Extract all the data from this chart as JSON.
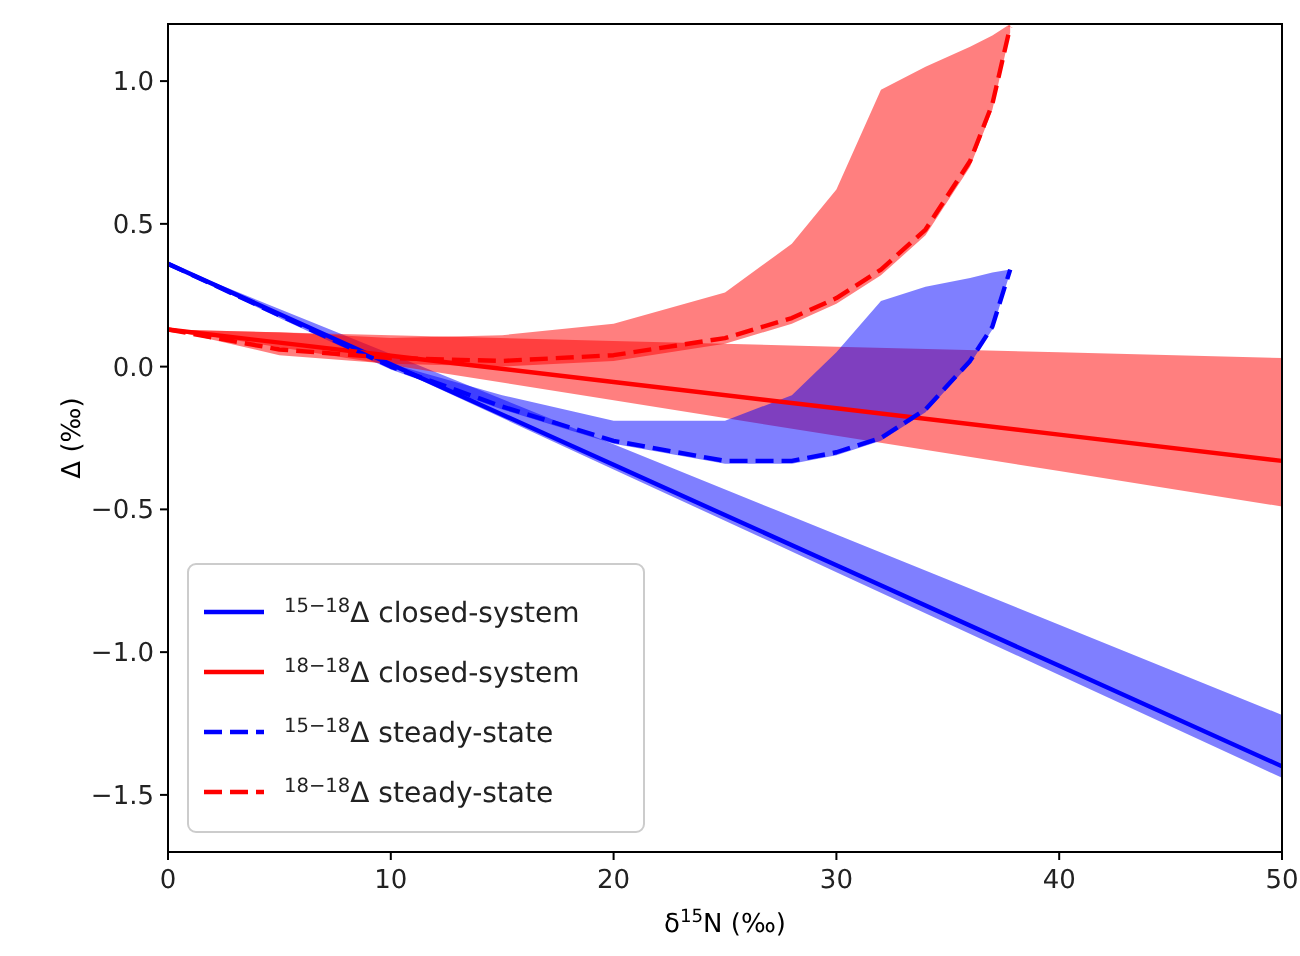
{
  "chart_data": {
    "type": "line",
    "xlabel": "δ$^{15}$N (‰)",
    "ylabel": "Δ (‰)",
    "xlim": [
      0,
      50
    ],
    "ylim": [
      -1.7,
      1.2
    ],
    "xticks": [
      0,
      10,
      20,
      30,
      40,
      50
    ],
    "yticks": [
      {
        "value": -1.5,
        "label": "−1.5"
      },
      {
        "value": -1,
        "label": "−1.0"
      },
      {
        "value": -0.5,
        "label": "−0.5"
      },
      {
        "value": 0,
        "label": "0.0"
      },
      {
        "value": 0.5,
        "label": "0.5"
      },
      {
        "value": 1,
        "label": "1.0"
      }
    ],
    "legend": "bottom left",
    "grid": false,
    "series": [
      {
        "name": "$^{15−18}$Δ closed-system",
        "color": "#0000ff",
        "line_style": "solid",
        "x": [
          0,
          10,
          20,
          30,
          40,
          50
        ],
        "values": [
          0.36,
          0.008,
          -0.344,
          -0.696,
          -1.048,
          -1.4
        ],
        "lower": [
          0.36,
          0,
          -0.36,
          -0.72,
          -1.08,
          -1.44
        ],
        "upper": [
          0.36,
          0.044,
          -0.272,
          -0.588,
          -0.904,
          -1.22
        ]
      },
      {
        "name": "$^{18−18}$Δ closed-system",
        "color": "#ff0000",
        "line_style": "solid",
        "x": [
          0,
          10,
          20,
          30,
          40,
          50
        ],
        "values": [
          0.13,
          0.038,
          -0.054,
          -0.146,
          -0.238,
          -0.33
        ],
        "lower": [
          0.13,
          0.006,
          -0.118,
          -0.242,
          -0.366,
          -0.49
        ],
        "upper": [
          0.13,
          0.11,
          0.09,
          0.07,
          0.05,
          0.03
        ]
      },
      {
        "name": "$^{15−18}$Δ steady-state",
        "color": "#0000ff",
        "line_style": "dashed",
        "x": [
          0,
          5,
          10,
          15,
          20,
          25,
          28,
          30,
          32,
          34,
          36,
          37,
          37.8
        ],
        "values": [
          0.36,
          0.18,
          0.0,
          -0.14,
          -0.26,
          -0.33,
          -0.33,
          -0.3,
          -0.25,
          -0.15,
          0.02,
          0.14,
          0.34
        ],
        "lower": [
          0.36,
          0.17,
          -0.01,
          -0.15,
          -0.27,
          -0.34,
          -0.34,
          -0.31,
          -0.26,
          -0.16,
          0.01,
          0.13,
          0.33
        ],
        "upper": [
          0.36,
          0.18,
          0.01,
          -0.1,
          -0.19,
          -0.19,
          -0.1,
          0.05,
          0.23,
          0.28,
          0.31,
          0.33,
          0.34
        ]
      },
      {
        "name": "$^{18−18}$Δ steady-state",
        "color": "#ff0000",
        "line_style": "dashed",
        "x": [
          0,
          5,
          10,
          15,
          20,
          25,
          28,
          30,
          32,
          34,
          36,
          37,
          37.8
        ],
        "values": [
          0.13,
          0.06,
          0.03,
          0.02,
          0.04,
          0.1,
          0.17,
          0.24,
          0.34,
          0.48,
          0.72,
          0.92,
          1.19
        ],
        "lower": [
          0.13,
          0.04,
          0.01,
          0.0,
          0.02,
          0.08,
          0.15,
          0.22,
          0.32,
          0.46,
          0.7,
          0.9,
          1.17
        ],
        "upper": [
          0.13,
          0.12,
          0.1,
          0.11,
          0.15,
          0.26,
          0.43,
          0.62,
          0.97,
          1.05,
          1.12,
          1.16,
          1.2
        ]
      }
    ]
  }
}
